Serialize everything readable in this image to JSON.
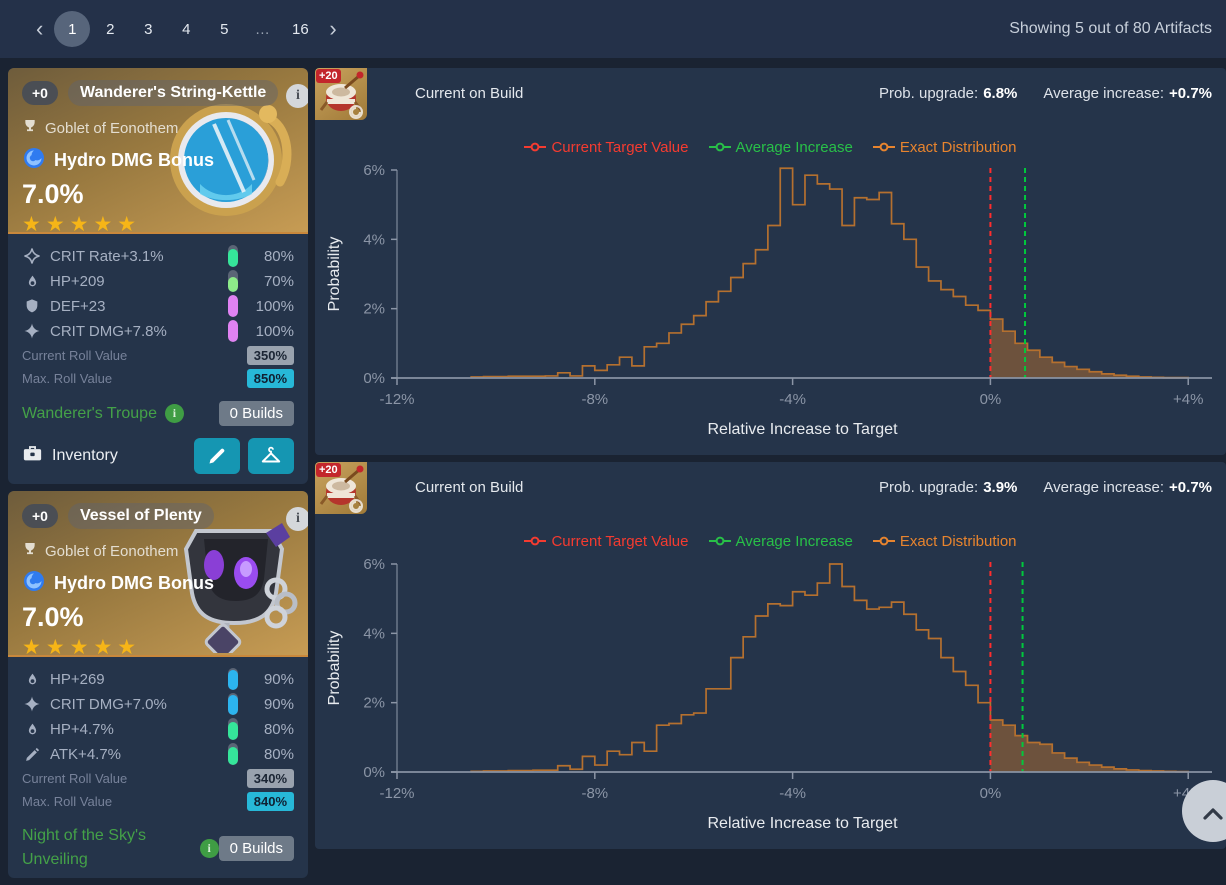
{
  "topbar": {
    "prev_icon": "‹",
    "next_icon": "›",
    "pages": [
      "1",
      "2",
      "3",
      "4",
      "5",
      "…",
      "16"
    ],
    "active_page": "1",
    "showing_text": "Showing 5 out of 80 Artifacts"
  },
  "cards": [
    {
      "level": "+0",
      "name": "Wanderer's String-Kettle",
      "slot_icon": "goblet-icon",
      "slot": "Goblet of Eonothem",
      "element_icon": "hydro-icon",
      "main_stat": "Hydro DMG Bonus",
      "main_value": "7.0%",
      "stars": 5,
      "star_color": "#f6b517",
      "art": "blue-kettle",
      "substats": [
        {
          "icon": "crit-rate-icon",
          "label": "CRIT Rate+3.1%",
          "pct": "80%",
          "fill": 80,
          "color": "#35e59a"
        },
        {
          "icon": "hp-icon",
          "label": "HP+209",
          "pct": "70%",
          "fill": 70,
          "color": "#8deb89"
        },
        {
          "icon": "def-icon",
          "label": "DEF+23",
          "pct": "100%",
          "fill": 100,
          "color": "#e082f2"
        },
        {
          "icon": "crit-dmg-icon",
          "label": "CRIT DMG+7.8%",
          "pct": "100%",
          "fill": 100,
          "color": "#e082f2"
        }
      ],
      "current_roll_label": "Current Roll Value",
      "current_roll": "350%",
      "max_roll_label": "Max. Roll Value",
      "max_roll": "850%",
      "set_name": "Wanderer's Troupe",
      "builds": "0 Builds",
      "location": "Inventory"
    },
    {
      "level": "+0",
      "name": "Vessel of Plenty",
      "slot_icon": "goblet-icon",
      "slot": "Goblet of Eonothem",
      "element_icon": "hydro-icon",
      "main_stat": "Hydro DMG Bonus",
      "main_value": "7.0%",
      "stars": 5,
      "star_color": "#f6b517",
      "art": "dark-vessel",
      "substats": [
        {
          "icon": "hp-icon",
          "label": "HP+269",
          "pct": "90%",
          "fill": 90,
          "color": "#2cb4ef"
        },
        {
          "icon": "crit-dmg-icon",
          "label": "CRIT DMG+7.0%",
          "pct": "90%",
          "fill": 90,
          "color": "#2cb4ef"
        },
        {
          "icon": "hp-icon",
          "label": "HP+4.7%",
          "pct": "80%",
          "fill": 80,
          "color": "#35e59a"
        },
        {
          "icon": "atk-icon",
          "label": "ATK+4.7%",
          "pct": "80%",
          "fill": 80,
          "color": "#35e59a"
        }
      ],
      "current_roll_label": "Current Roll Value",
      "current_roll": "340%",
      "max_roll_label": "Max. Roll Value",
      "max_roll": "840%",
      "set_name": "Night of the Sky's Unveiling",
      "builds": "0 Builds"
    }
  ],
  "charts": [
    {
      "thumb_level": "+20",
      "title": "Current on Build",
      "prob_label": "Prob. upgrade:",
      "prob_value": "6.8%",
      "avg_label": "Average increase:",
      "avg_value": "+0.7%",
      "legend": [
        {
          "label": "Current Target Value",
          "color": "#f53b30"
        },
        {
          "label": "Average Increase",
          "color": "#28c048"
        },
        {
          "label": "Exact Distribution",
          "color": "#e8842e"
        }
      ],
      "chart_data": {
        "type": "histogram-step",
        "xlabel": "Relative Increase to Target",
        "ylabel": "Probability",
        "xlim": [
          -12,
          4.4
        ],
        "ylim": [
          0,
          6
        ],
        "xticks": [
          {
            "v": -12,
            "label": "-12%"
          },
          {
            "v": -8,
            "label": "-8%"
          },
          {
            "v": -4,
            "label": "-4%"
          },
          {
            "v": 0,
            "label": "0%"
          },
          {
            "v": 4,
            "label": "+4%"
          }
        ],
        "yticks": [
          {
            "v": 0,
            "label": "0%"
          },
          {
            "v": 2,
            "label": "2%"
          },
          {
            "v": 4,
            "label": "4%"
          },
          {
            "v": 6,
            "label": "6%"
          }
        ],
        "bin_start": -10.5,
        "bin_width": 0.25,
        "values": [
          0.03,
          0.04,
          0.04,
          0.05,
          0.05,
          0.05,
          0.06,
          0.15,
          0.06,
          0.35,
          0.22,
          0.38,
          0.6,
          0.35,
          0.9,
          1.0,
          1.3,
          1.55,
          1.8,
          2.2,
          2.5,
          2.9,
          3.3,
          3.7,
          4.4,
          6.05,
          5.0,
          5.85,
          5.6,
          5.45,
          4.4,
          5.2,
          5.15,
          5.35,
          4.45,
          4.0,
          3.2,
          2.8,
          2.55,
          2.35,
          2.1,
          1.95,
          1.7,
          1.35,
          1.0,
          0.8,
          0.6,
          0.45,
          0.33,
          0.25,
          0.18,
          0.12,
          0.08,
          0.05,
          0.03,
          0.02,
          0.01,
          0.01
        ],
        "marker_red_x": 0,
        "marker_green_x": 0.7,
        "hist_color": "#b5702f",
        "fill_opacity": 0.5,
        "marker_red_color": "#ff2d2d",
        "marker_green_color": "#00c93c",
        "axis_color": "#8b95a6"
      }
    },
    {
      "thumb_level": "+20",
      "title": "Current on Build",
      "prob_label": "Prob. upgrade:",
      "prob_value": "3.9%",
      "avg_label": "Average increase:",
      "avg_value": "+0.7%",
      "legend": [
        {
          "label": "Current Target Value",
          "color": "#f53b30"
        },
        {
          "label": "Average Increase",
          "color": "#28c048"
        },
        {
          "label": "Exact Distribution",
          "color": "#e8842e"
        }
      ],
      "chart_data": {
        "type": "histogram-step",
        "xlabel": "Relative Increase to Target",
        "ylabel": "Probability",
        "xlim": [
          -12,
          4.4
        ],
        "ylim": [
          0,
          6
        ],
        "xticks": [
          {
            "v": -12,
            "label": "-12%"
          },
          {
            "v": -8,
            "label": "-8%"
          },
          {
            "v": -4,
            "label": "-4%"
          },
          {
            "v": 0,
            "label": "0%"
          },
          {
            "v": 4,
            "label": "+4%"
          }
        ],
        "yticks": [
          {
            "v": 0,
            "label": "0%"
          },
          {
            "v": 2,
            "label": "2%"
          },
          {
            "v": 4,
            "label": "4%"
          },
          {
            "v": 6,
            "label": "6%"
          }
        ],
        "bin_start": -10.5,
        "bin_width": 0.25,
        "values": [
          0.02,
          0.03,
          0.03,
          0.04,
          0.04,
          0.05,
          0.05,
          0.18,
          0.08,
          0.45,
          0.2,
          0.6,
          0.5,
          0.85,
          0.6,
          1.35,
          1.4,
          1.65,
          1.7,
          2.4,
          2.4,
          3.3,
          3.9,
          4.5,
          4.85,
          4.8,
          5.2,
          5.1,
          5.45,
          6.0,
          5.35,
          4.95,
          4.7,
          4.75,
          4.9,
          4.55,
          4.1,
          3.85,
          3.3,
          2.9,
          2.5,
          2.0,
          1.5,
          1.35,
          1.05,
          0.85,
          0.8,
          0.55,
          0.4,
          0.28,
          0.2,
          0.14,
          0.09,
          0.06,
          0.04,
          0.03,
          0.02,
          0.01
        ],
        "marker_red_x": 0,
        "marker_green_x": 0.65,
        "hist_color": "#b5702f",
        "fill_opacity": 0.5,
        "marker_red_color": "#ff2d2d",
        "marker_green_color": "#00c93c",
        "axis_color": "#8b95a6"
      }
    }
  ],
  "scroll_top": {
    "icon": "chevron-up-icon"
  }
}
